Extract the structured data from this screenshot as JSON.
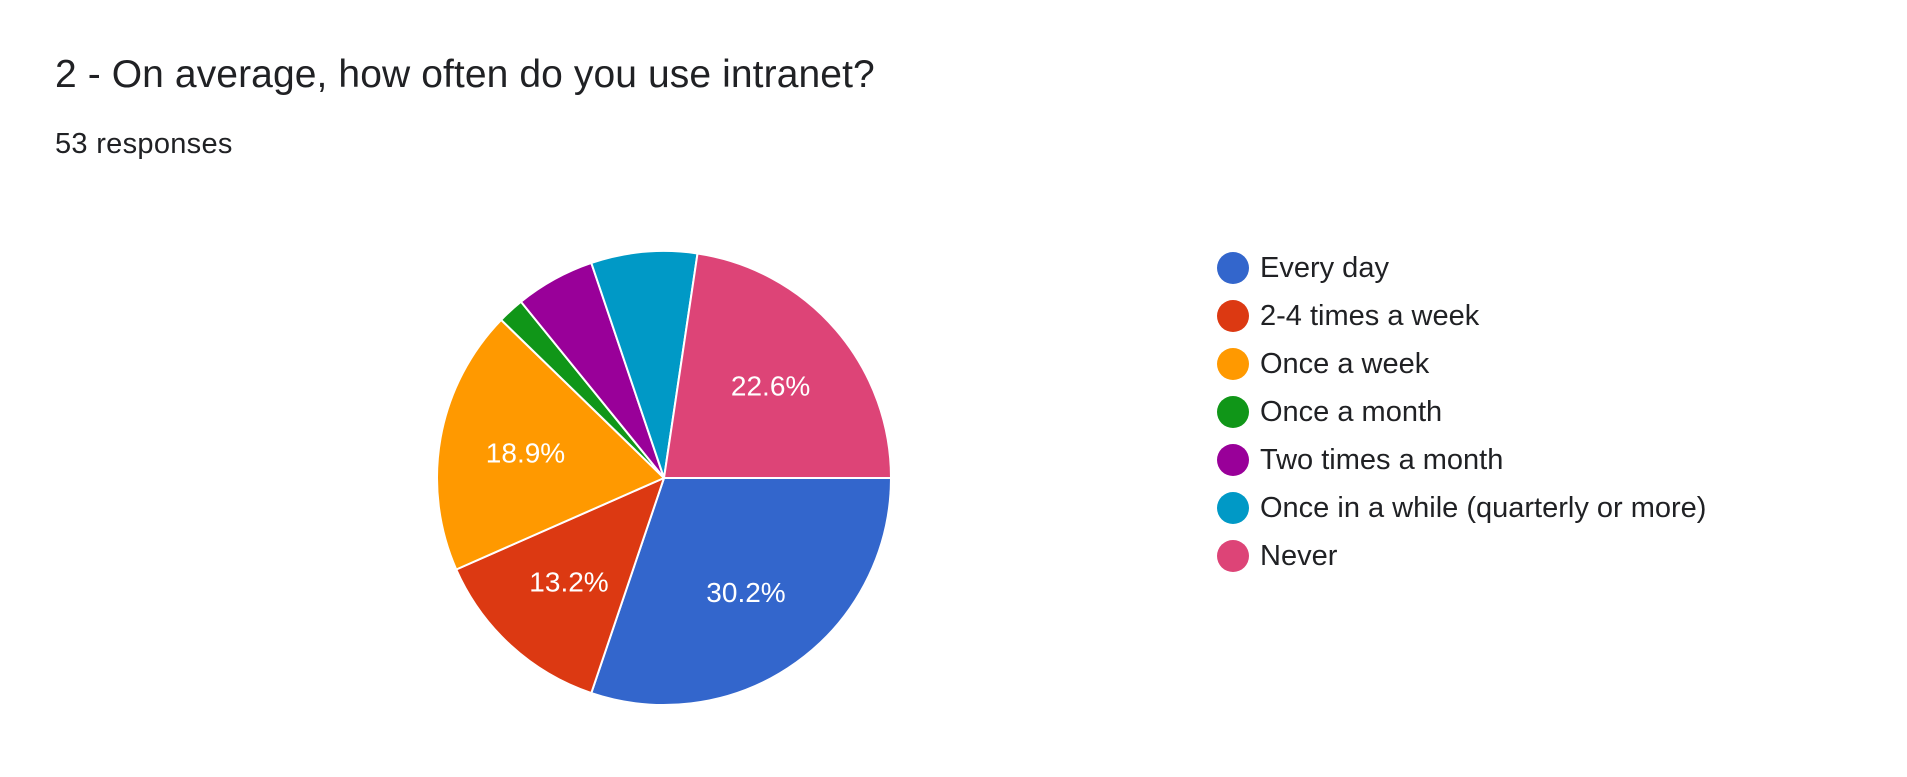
{
  "header": {
    "title": "2 - On average, how often do you use intranet?",
    "subtitle": "53 responses"
  },
  "chart_data": {
    "type": "pie",
    "categories": [
      "Every day",
      "2-4 times a week",
      "Once a week",
      "Once a month",
      "Two times a month",
      "Once in a while (quarterly or more)",
      "Never"
    ],
    "values": [
      16,
      7,
      10,
      1,
      3,
      4,
      12
    ],
    "percent_labels": [
      "30.2%",
      "13.2%",
      "18.9%",
      "",
      "",
      "",
      "22.6%"
    ],
    "colors": [
      "#3366cc",
      "#dc3912",
      "#ff9900",
      "#109618",
      "#990099",
      "#0099c6",
      "#dd4477"
    ],
    "legend_position": "right",
    "start_angle": "3 o'clock",
    "direction": "clockwise"
  }
}
